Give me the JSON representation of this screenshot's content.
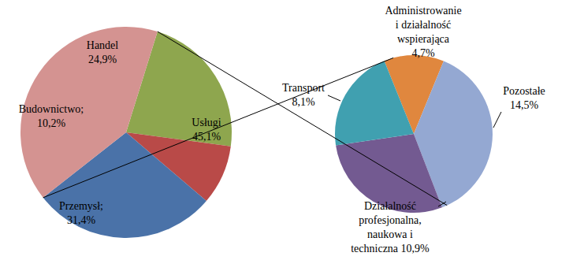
{
  "chart_data": [
    {
      "type": "pie",
      "categories": [
        "Handel",
        "Budownictwo;",
        "Przemysł;",
        "Usługi"
      ],
      "values": [
        24.9,
        10.2,
        31.4,
        45.1
      ],
      "value_labels": [
        "24,9%",
        "10,2%",
        "31,4%",
        "45,1%"
      ],
      "colors": [
        "#8ea64e",
        "#b94a48",
        "#4a72a8",
        "#d49391"
      ],
      "data_labels": true
    },
    {
      "type": "pie",
      "categories": [
        "Administrowanie\ni działalność\nwspierająca",
        "Pozostałe",
        "Działalność\nprofesjonalna,\nnaukowa i\ntechniczna",
        "Transport"
      ],
      "values": [
        4.7,
        14.5,
        10.9,
        8.1
      ],
      "value_labels": [
        "4,7%",
        "14,5%",
        "10,9%",
        "8,1%"
      ],
      "colors": [
        "#e0873e",
        "#94a8d2",
        "#735a91",
        "#40a0b0"
      ],
      "data_labels": true
    }
  ]
}
